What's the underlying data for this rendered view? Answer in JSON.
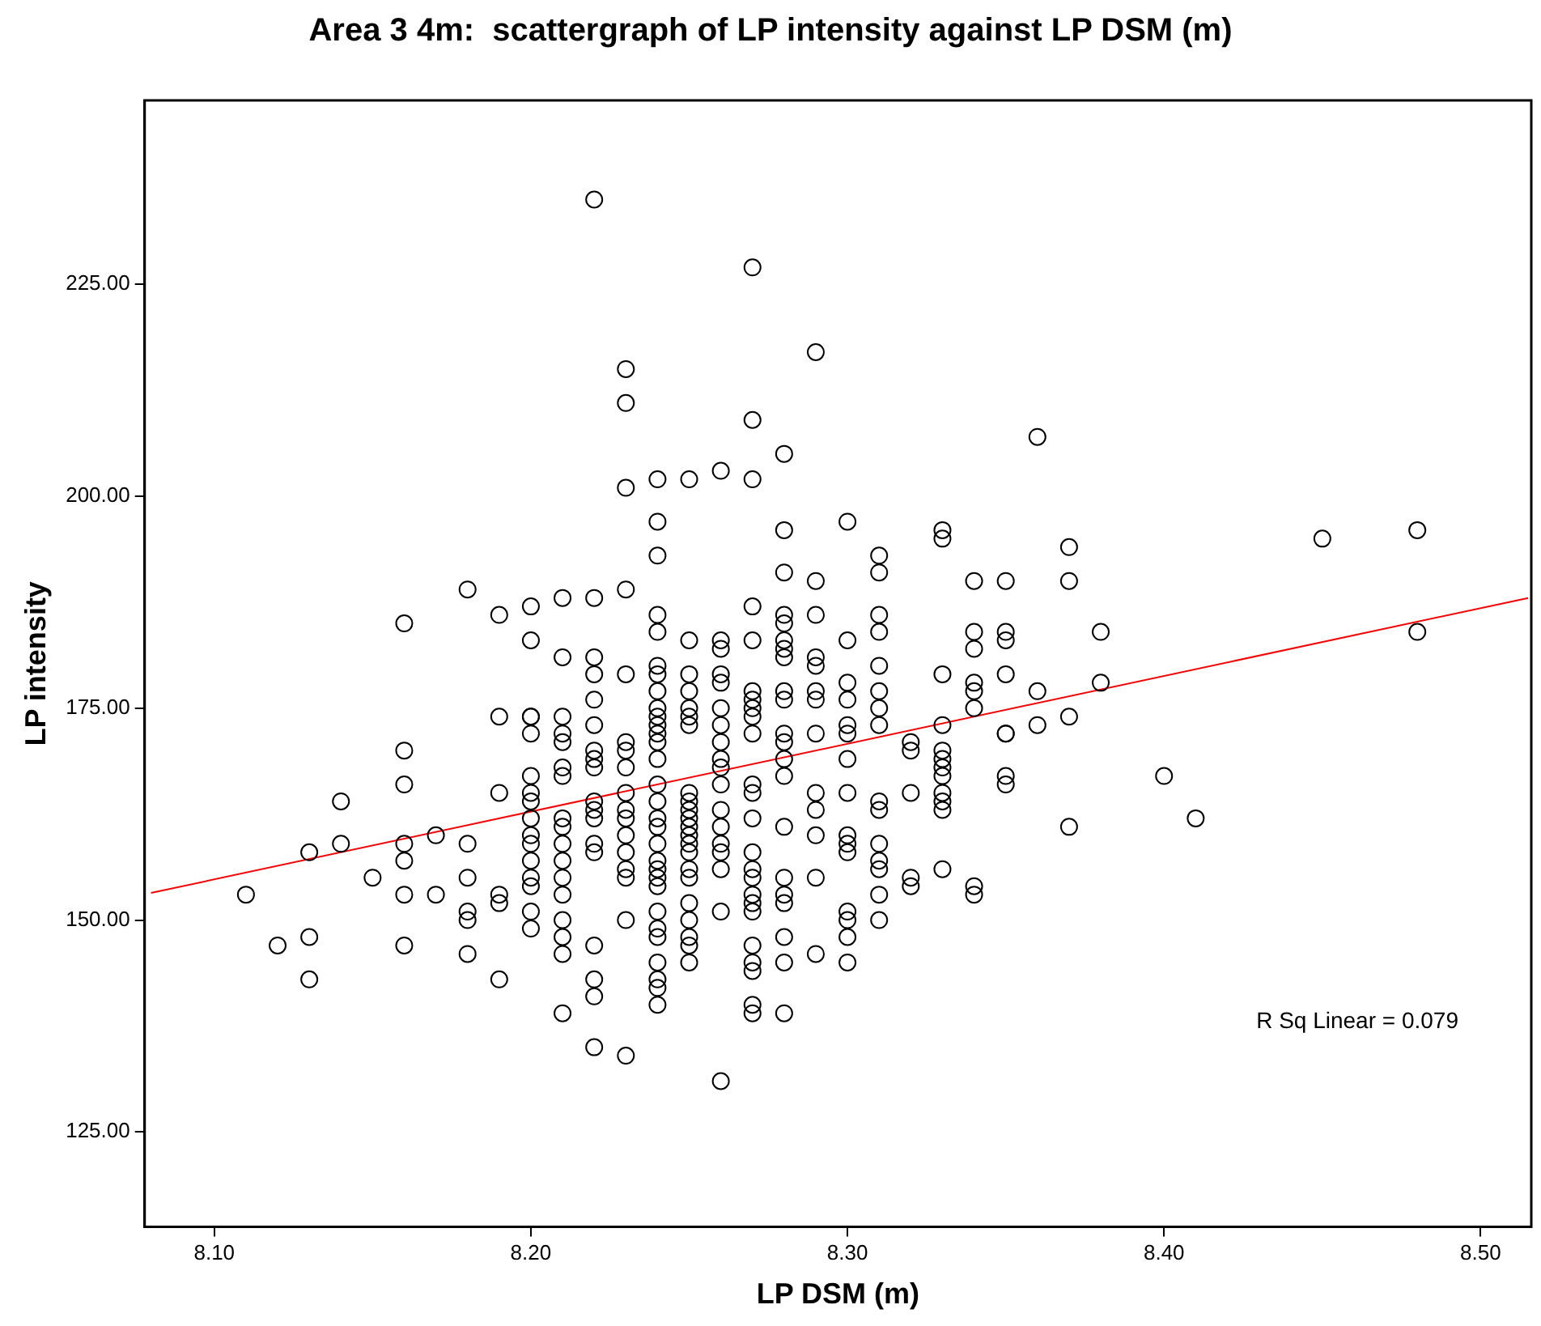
{
  "chart_data": {
    "type": "scatter",
    "title": "Area 3 4m:  scattergraph of LP intensity against LP DSM (m)",
    "xlabel": "LP DSM (m)",
    "ylabel": "LP intensity",
    "grid": false,
    "legend": false,
    "xlim": [
      8.078,
      8.516
    ],
    "ylim": [
      113.8,
      246.7
    ],
    "xticks": [
      {
        "value": 8.1,
        "label": "8.10"
      },
      {
        "value": 8.2,
        "label": "8.20"
      },
      {
        "value": 8.3,
        "label": "8.30"
      },
      {
        "value": 8.4,
        "label": "8.40"
      },
      {
        "value": 8.5,
        "label": "8.50"
      }
    ],
    "yticks": [
      {
        "value": 125,
        "label": "125.00"
      },
      {
        "value": 150,
        "label": "150.00"
      },
      {
        "value": 175,
        "label": "175.00"
      },
      {
        "value": 200,
        "label": "200.00"
      },
      {
        "value": 225,
        "label": "225.00"
      }
    ],
    "annotations": [
      "R Sq Linear = 0.079"
    ],
    "series": [
      {
        "marker": "circle",
        "color": "#000000",
        "x": [
          8.11,
          8.12,
          8.13,
          8.13,
          8.13,
          8.14,
          8.14,
          8.15,
          8.16,
          8.16,
          8.16,
          8.16,
          8.16,
          8.16,
          8.16,
          8.17,
          8.17,
          8.18,
          8.18,
          8.18,
          8.18,
          8.18,
          8.18,
          8.19,
          8.19,
          8.19,
          8.19,
          8.19,
          8.19,
          8.2,
          8.2,
          8.2,
          8.2,
          8.2,
          8.2,
          8.2,
          8.2,
          8.2,
          8.2,
          8.2,
          8.2,
          8.2,
          8.2,
          8.2,
          8.2,
          8.21,
          8.21,
          8.21,
          8.21,
          8.21,
          8.21,
          8.21,
          8.21,
          8.21,
          8.21,
          8.21,
          8.21,
          8.21,
          8.21,
          8.21,
          8.21,
          8.21,
          8.22,
          8.22,
          8.22,
          8.22,
          8.22,
          8.22,
          8.22,
          8.22,
          8.22,
          8.22,
          8.22,
          8.22,
          8.22,
          8.22,
          8.22,
          8.22,
          8.22,
          8.22,
          8.23,
          8.23,
          8.23,
          8.23,
          8.23,
          8.23,
          8.23,
          8.23,
          8.23,
          8.23,
          8.23,
          8.23,
          8.23,
          8.23,
          8.23,
          8.23,
          8.23,
          8.24,
          8.24,
          8.24,
          8.24,
          8.24,
          8.24,
          8.24,
          8.24,
          8.24,
          8.24,
          8.24,
          8.24,
          8.24,
          8.24,
          8.24,
          8.24,
          8.24,
          8.24,
          8.24,
          8.24,
          8.24,
          8.24,
          8.24,
          8.24,
          8.24,
          8.24,
          8.24,
          8.24,
          8.24,
          8.24,
          8.25,
          8.25,
          8.25,
          8.25,
          8.25,
          8.25,
          8.25,
          8.25,
          8.25,
          8.25,
          8.25,
          8.25,
          8.25,
          8.25,
          8.25,
          8.25,
          8.25,
          8.25,
          8.25,
          8.25,
          8.25,
          8.25,
          8.26,
          8.26,
          8.26,
          8.26,
          8.26,
          8.26,
          8.26,
          8.26,
          8.26,
          8.26,
          8.26,
          8.26,
          8.26,
          8.26,
          8.26,
          8.26,
          8.26,
          8.26,
          8.27,
          8.27,
          8.27,
          8.27,
          8.27,
          8.27,
          8.27,
          8.27,
          8.27,
          8.27,
          8.27,
          8.27,
          8.27,
          8.27,
          8.27,
          8.27,
          8.27,
          8.27,
          8.27,
          8.27,
          8.27,
          8.27,
          8.27,
          8.27,
          8.28,
          8.28,
          8.28,
          8.28,
          8.28,
          8.28,
          8.28,
          8.28,
          8.28,
          8.28,
          8.28,
          8.28,
          8.28,
          8.28,
          8.28,
          8.28,
          8.28,
          8.28,
          8.28,
          8.28,
          8.28,
          8.29,
          8.29,
          8.29,
          8.29,
          8.29,
          8.29,
          8.29,
          8.29,
          8.29,
          8.29,
          8.29,
          8.29,
          8.29,
          8.3,
          8.3,
          8.3,
          8.3,
          8.3,
          8.3,
          8.3,
          8.3,
          8.3,
          8.3,
          8.3,
          8.3,
          8.3,
          8.3,
          8.3,
          8.31,
          8.31,
          8.31,
          8.31,
          8.31,
          8.31,
          8.31,
          8.31,
          8.31,
          8.31,
          8.31,
          8.31,
          8.31,
          8.31,
          8.31,
          8.32,
          8.32,
          8.32,
          8.32,
          8.32,
          8.33,
          8.33,
          8.33,
          8.33,
          8.33,
          8.33,
          8.33,
          8.33,
          8.33,
          8.33,
          8.33,
          8.33,
          8.34,
          8.34,
          8.34,
          8.34,
          8.34,
          8.34,
          8.34,
          8.34,
          8.35,
          8.35,
          8.35,
          8.35,
          8.35,
          8.35,
          8.35,
          8.35,
          8.36,
          8.36,
          8.36,
          8.37,
          8.37,
          8.37,
          8.37,
          8.38,
          8.38,
          8.4,
          8.41,
          8.45,
          8.48,
          8.48
        ],
        "values": [
          153,
          147,
          158,
          148,
          143,
          164,
          159,
          155,
          185,
          170,
          166,
          159,
          157,
          153,
          147,
          160,
          153,
          189,
          159,
          155,
          151,
          150,
          146,
          186,
          174,
          165,
          153,
          152,
          143,
          187,
          183,
          174,
          174,
          172,
          167,
          165,
          164,
          162,
          160,
          159,
          157,
          155,
          154,
          151,
          149,
          188,
          181,
          174,
          172,
          171,
          168,
          167,
          162,
          161,
          159,
          157,
          155,
          153,
          150,
          148,
          146,
          139,
          235,
          188,
          181,
          179,
          176,
          173,
          170,
          169,
          168,
          164,
          163,
          162,
          159,
          158,
          147,
          143,
          141,
          135,
          215,
          211,
          201,
          189,
          179,
          171,
          170,
          168,
          165,
          163,
          162,
          160,
          158,
          156,
          155,
          150,
          134,
          202,
          197,
          193,
          186,
          184,
          180,
          179,
          177,
          175,
          174,
          173,
          172,
          171,
          169,
          166,
          164,
          162,
          161,
          159,
          157,
          156,
          155,
          154,
          151,
          149,
          148,
          145,
          143,
          142,
          140,
          202,
          183,
          179,
          177,
          175,
          174,
          173,
          165,
          164,
          163,
          162,
          161,
          160,
          159,
          158,
          156,
          155,
          152,
          150,
          148,
          147,
          145,
          203,
          183,
          182,
          179,
          178,
          175,
          173,
          171,
          169,
          168,
          166,
          163,
          161,
          159,
          158,
          156,
          151,
          131,
          227,
          209,
          202,
          187,
          183,
          177,
          176,
          175,
          174,
          172,
          166,
          165,
          162,
          158,
          156,
          155,
          153,
          152,
          151,
          147,
          145,
          144,
          140,
          139,
          205,
          196,
          191,
          186,
          185,
          183,
          182,
          181,
          177,
          176,
          172,
          171,
          169,
          167,
          161,
          155,
          153,
          152,
          148,
          145,
          139,
          217,
          190,
          186,
          181,
          180,
          177,
          176,
          172,
          165,
          163,
          160,
          155,
          146,
          197,
          183,
          178,
          176,
          173,
          172,
          169,
          165,
          160,
          159,
          158,
          151,
          150,
          148,
          145,
          193,
          191,
          186,
          184,
          180,
          177,
          175,
          173,
          164,
          163,
          159,
          157,
          156,
          153,
          150,
          171,
          170,
          165,
          155,
          154,
          196,
          195,
          179,
          173,
          170,
          169,
          168,
          167,
          165,
          164,
          163,
          156,
          190,
          184,
          182,
          178,
          177,
          175,
          154,
          153,
          190,
          184,
          183,
          179,
          172,
          172,
          167,
          166,
          207,
          177,
          173,
          194,
          190,
          174,
          161,
          184,
          178,
          167,
          162,
          195,
          196,
          184
        ]
      },
      {
        "type": "line",
        "marker": "none",
        "color": "#ff0000",
        "x": [
          8.08,
          8.515
        ],
        "values": [
          153.2,
          188.0
        ]
      }
    ]
  }
}
